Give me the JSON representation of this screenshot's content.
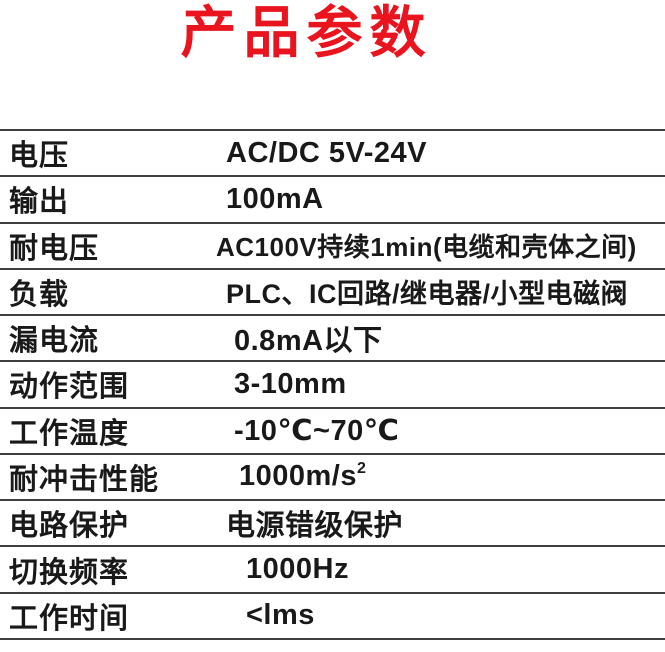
{
  "page": {
    "title": "产品参数"
  },
  "colors": {
    "title_red": "#e9141e",
    "text": "#191919",
    "divider": "#3f3f3f",
    "background": "#ffffff"
  },
  "table": {
    "rows": [
      {
        "label": "电压",
        "value": "AC/DC 5V-24V"
      },
      {
        "label": "输出",
        "value": "100mA"
      },
      {
        "label": "耐电压",
        "value": "AC100V持续1min(电缆和壳体之间)"
      },
      {
        "label": "负载",
        "value": "PLC、IC回路/继电器/小型电磁阀"
      },
      {
        "label": "漏电流",
        "value": "0.8mA以下"
      },
      {
        "label": "动作范围",
        "value": "3-10mm"
      },
      {
        "label": "工作温度",
        "value": "-10℃~70℃"
      },
      {
        "label": "耐冲击性能",
        "value": "1000m/s",
        "sup": "2"
      },
      {
        "label": "电路保护",
        "value": "电源错级保护"
      },
      {
        "label": "切换频率",
        "value": "1000Hz"
      },
      {
        "label": "工作时间",
        "value": "<lms"
      }
    ]
  }
}
